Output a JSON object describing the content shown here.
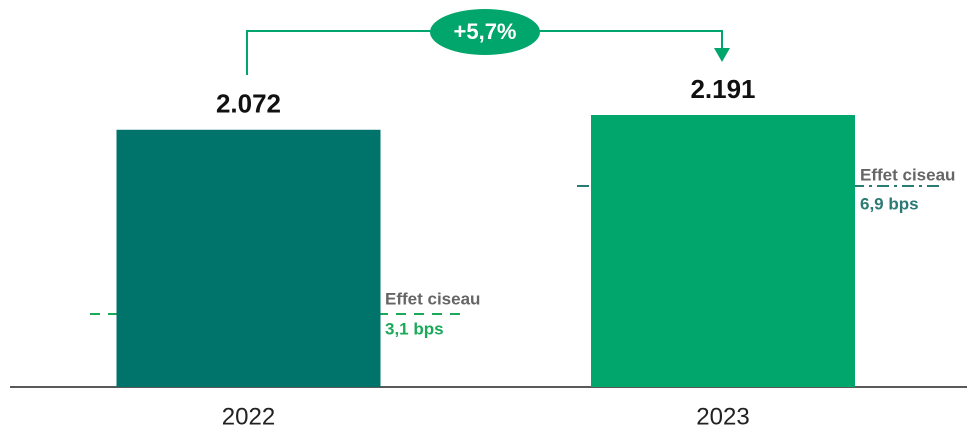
{
  "chart_data": {
    "type": "bar",
    "categories": [
      "2022",
      "2023"
    ],
    "values": [
      2072,
      2191
    ],
    "value_labels": [
      "2.072",
      "2.191"
    ],
    "colors": [
      "#00736a",
      "#00a66c"
    ],
    "annotations": {
      "change": "+5,7%",
      "notes": [
        {
          "title": "Effet ciseau",
          "text": "3,1 bps"
        },
        {
          "title": "Effet ciseau",
          "text": "6,9 bps"
        }
      ]
    }
  }
}
